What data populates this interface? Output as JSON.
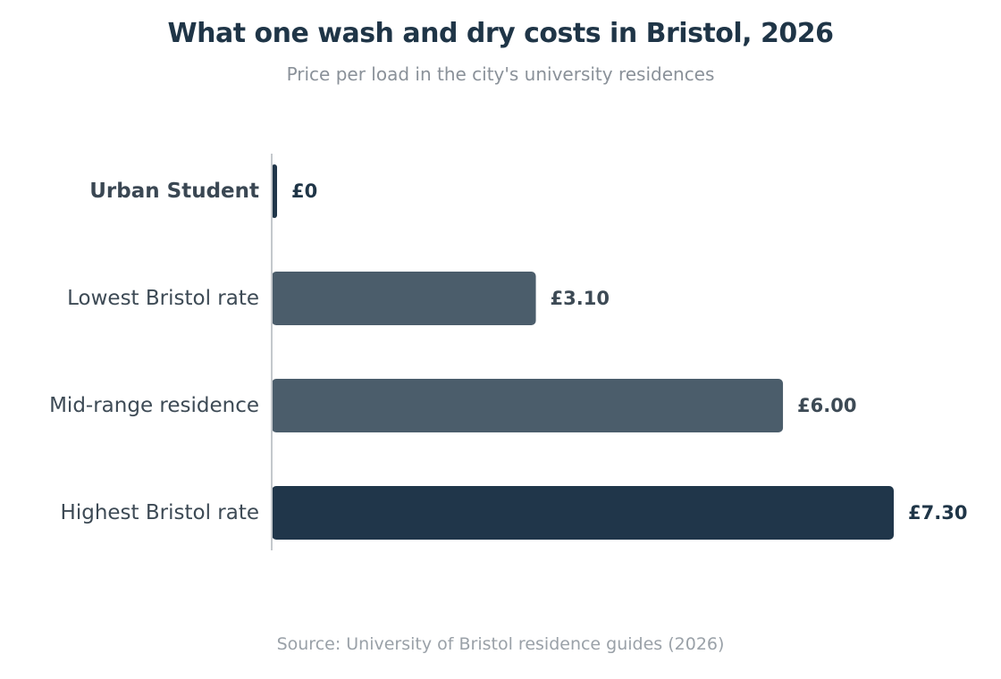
{
  "chart_data": {
    "type": "bar",
    "orientation": "horizontal",
    "title": "What one wash and dry costs in Bristol, 2026",
    "subtitle": "Price per load in the city's university residences",
    "source": "Source: University of Bristol residence guides (2026)",
    "categories": [
      "Urban Student",
      "Lowest Bristol rate",
      "Mid-range residence",
      "Highest Bristol rate"
    ],
    "values": [
      0,
      3.1,
      6.0,
      7.3
    ],
    "value_labels": [
      "£0",
      "£3.10",
      "£6.00",
      "£7.30"
    ],
    "highlighted": [
      "Urban Student",
      "Highest Bristol rate"
    ],
    "xlim": [
      0,
      7.3
    ],
    "grid": false,
    "legend": "none",
    "colors": {
      "highlight": "#20364a",
      "default": "#4b5d6b",
      "axis": "#c4c8cc"
    }
  }
}
